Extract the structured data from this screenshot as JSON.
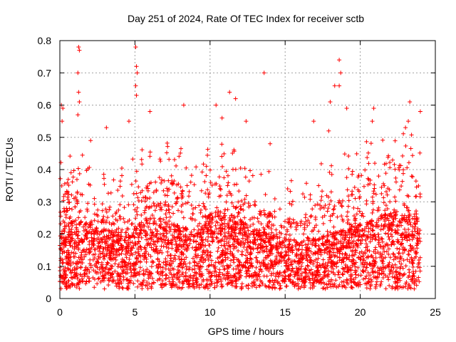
{
  "chart_data": {
    "type": "scatter",
    "title": "Day 251 of 2024, Rate Of TEC Index for receiver sctb",
    "xlabel": "GPS time / hours",
    "ylabel": "ROTI / TECUs",
    "xlim": [
      0,
      25
    ],
    "ylim": [
      0,
      0.8
    ],
    "xticks": [
      0,
      5,
      10,
      15,
      20,
      25
    ],
    "yticks": [
      0,
      0.1,
      0.2,
      0.3,
      0.4,
      0.5,
      0.6,
      0.7,
      0.8
    ],
    "xtick_labels": [
      "0",
      "5",
      "10",
      "15",
      "20",
      "25"
    ],
    "ytick_labels": [
      "0",
      "0.1",
      "0.2",
      "0.3",
      "0.4",
      "0.5",
      "0.6",
      "0.7",
      "0.8"
    ],
    "grid": true,
    "legend": "none",
    "marker": "+",
    "color": "#ff0000",
    "x_span_hours": [
      0,
      24
    ],
    "profile_hours": [
      0,
      1,
      2,
      3,
      4,
      5,
      6,
      7,
      8,
      9,
      10,
      11,
      12,
      13,
      14,
      15,
      16,
      17,
      18,
      19,
      20,
      21,
      22,
      23,
      24
    ],
    "profile_typical_roti": [
      0.15,
      0.17,
      0.16,
      0.15,
      0.14,
      0.16,
      0.18,
      0.17,
      0.16,
      0.14,
      0.18,
      0.19,
      0.17,
      0.15,
      0.14,
      0.13,
      0.12,
      0.13,
      0.14,
      0.15,
      0.16,
      0.17,
      0.19,
      0.18,
      0.17
    ],
    "profile_upper_roti": [
      0.32,
      0.35,
      0.3,
      0.28,
      0.3,
      0.33,
      0.36,
      0.38,
      0.35,
      0.3,
      0.36,
      0.38,
      0.33,
      0.3,
      0.28,
      0.25,
      0.25,
      0.3,
      0.32,
      0.34,
      0.36,
      0.38,
      0.4,
      0.42,
      0.35
    ],
    "high_points": [
      {
        "x": 0.1,
        "y": 0.6
      },
      {
        "x": 0.2,
        "y": 0.59
      },
      {
        "x": 0.15,
        "y": 0.55
      },
      {
        "x": 1.25,
        "y": 0.78
      },
      {
        "x": 1.3,
        "y": 0.77
      },
      {
        "x": 1.2,
        "y": 0.7
      },
      {
        "x": 1.25,
        "y": 0.64
      },
      {
        "x": 1.3,
        "y": 0.61
      },
      {
        "x": 1.2,
        "y": 0.57
      },
      {
        "x": 5.05,
        "y": 0.78
      },
      {
        "x": 5.1,
        "y": 0.72
      },
      {
        "x": 5.15,
        "y": 0.7
      },
      {
        "x": 5.05,
        "y": 0.66
      },
      {
        "x": 5.1,
        "y": 0.63
      },
      {
        "x": 4.6,
        "y": 0.55
      },
      {
        "x": 6.0,
        "y": 0.58
      },
      {
        "x": 8.25,
        "y": 0.6
      },
      {
        "x": 10.4,
        "y": 0.6
      },
      {
        "x": 10.8,
        "y": 0.56
      },
      {
        "x": 11.3,
        "y": 0.64
      },
      {
        "x": 11.7,
        "y": 0.62
      },
      {
        "x": 12.4,
        "y": 0.55
      },
      {
        "x": 13.6,
        "y": 0.7
      },
      {
        "x": 18.0,
        "y": 0.61
      },
      {
        "x": 18.3,
        "y": 0.66
      },
      {
        "x": 18.6,
        "y": 0.74
      },
      {
        "x": 18.7,
        "y": 0.7
      },
      {
        "x": 18.6,
        "y": 0.66
      },
      {
        "x": 19.1,
        "y": 0.59
      },
      {
        "x": 20.9,
        "y": 0.59
      },
      {
        "x": 20.8,
        "y": 0.55
      },
      {
        "x": 23.3,
        "y": 0.61
      },
      {
        "x": 23.2,
        "y": 0.55
      },
      {
        "x": 24.0,
        "y": 0.58
      },
      {
        "x": 3.1,
        "y": 0.53
      },
      {
        "x": 16.9,
        "y": 0.55
      },
      {
        "x": 17.9,
        "y": 0.52
      },
      {
        "x": 2.05,
        "y": 0.49
      },
      {
        "x": 14.0,
        "y": 0.48
      }
    ]
  }
}
